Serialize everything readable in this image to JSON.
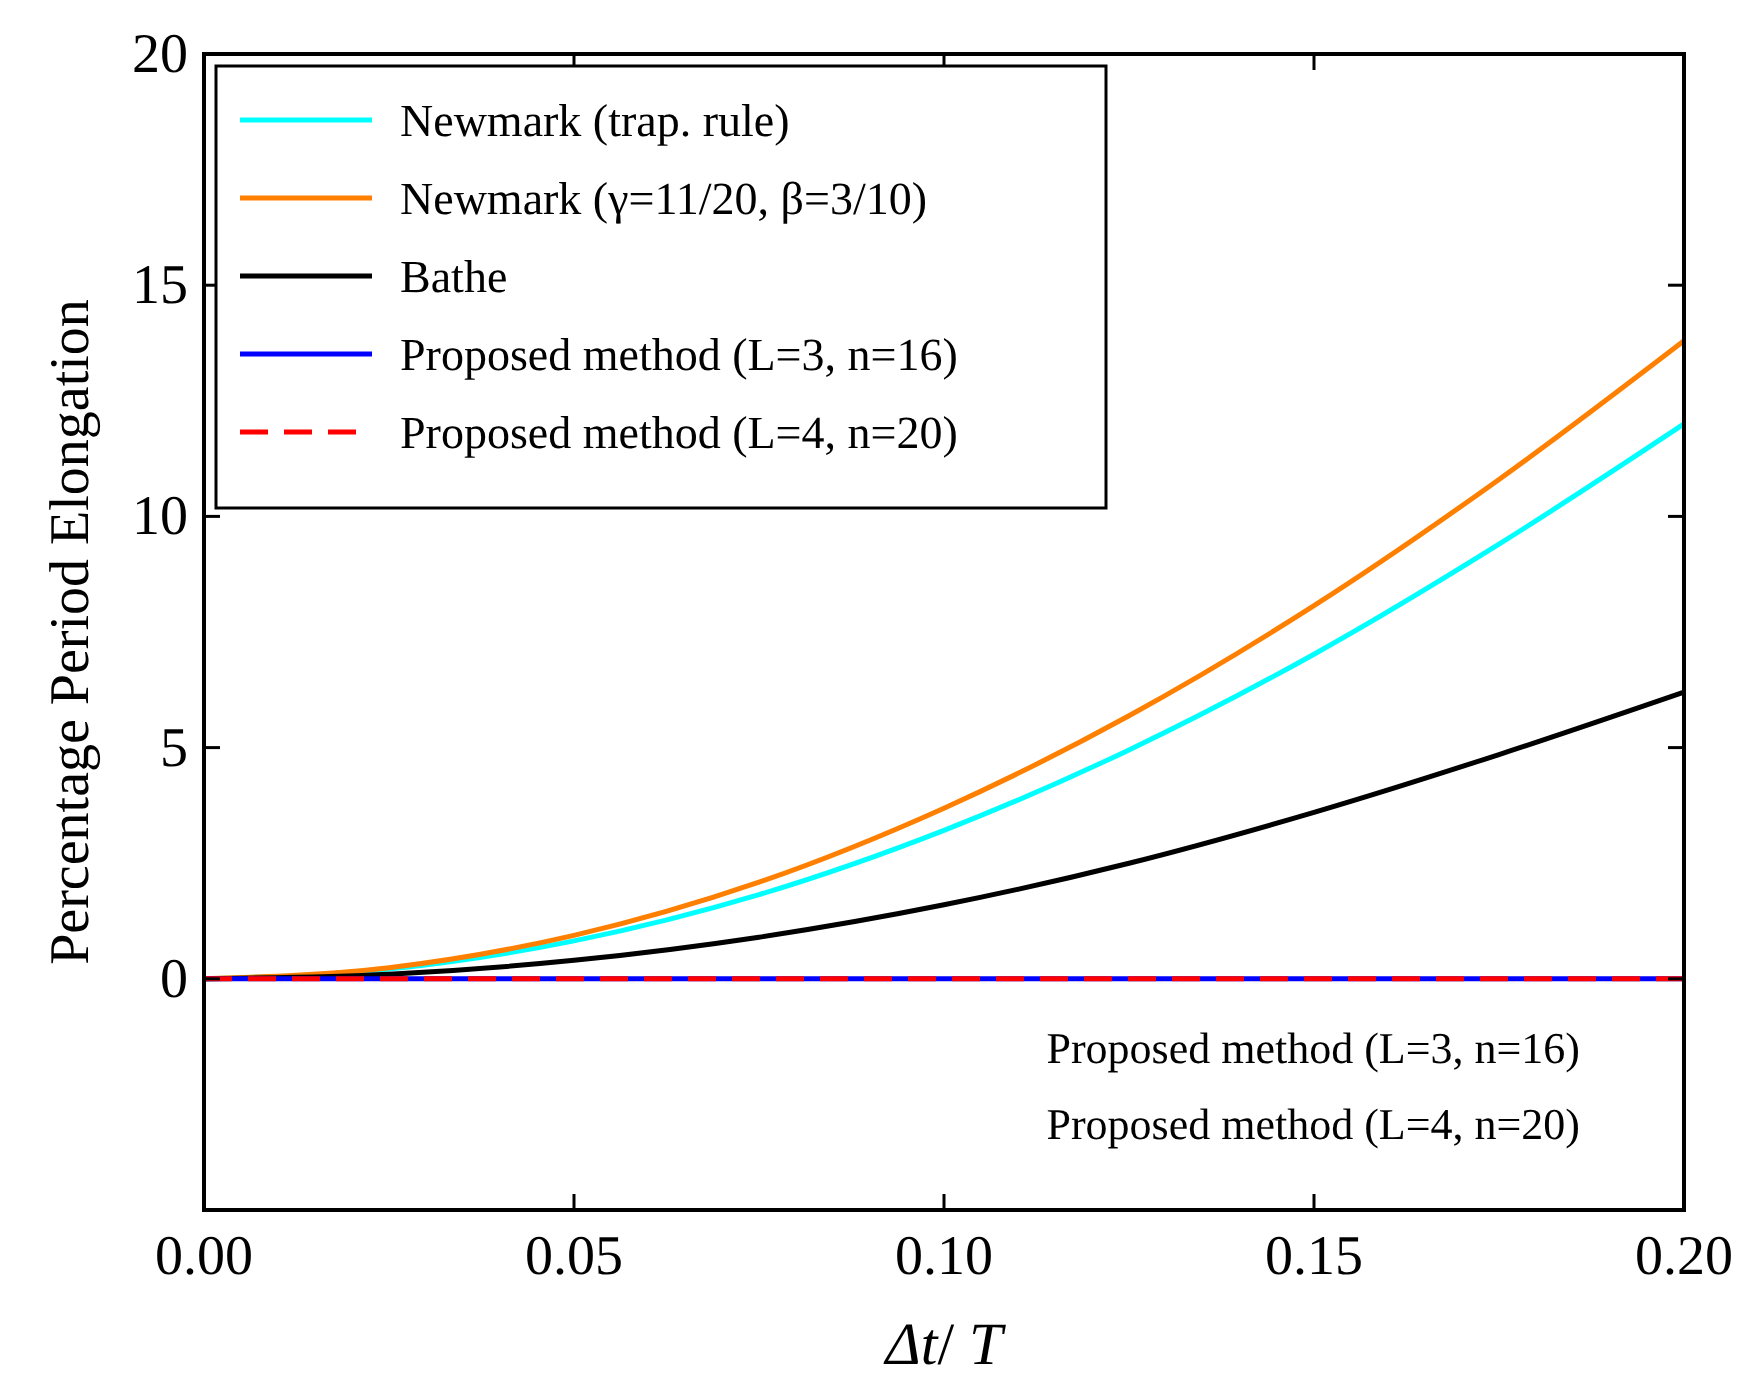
{
  "chart_data": {
    "type": "line",
    "xlabel": "Δt/ T",
    "ylabel": "Percentage Period Elongation",
    "x": [
      0,
      0.025,
      0.05,
      0.075,
      0.1,
      0.125,
      0.15,
      0.175,
      0.2
    ],
    "series": [
      {
        "name": "Newmark (trap. rule)",
        "color": "#00ffff",
        "values": [
          0,
          0.21,
          0.82,
          1.82,
          3.21,
          4.95,
          7.02,
          9.4,
          12.0
        ]
      },
      {
        "name": "Newmark (γ=11/20, β=3/10)",
        "color": "#ff8000",
        "values": [
          0,
          0.24,
          0.94,
          2.09,
          3.69,
          5.69,
          8.07,
          10.8,
          13.8
        ]
      },
      {
        "name": "Bathe",
        "color": "#000000",
        "values": [
          0,
          0.1,
          0.4,
          0.9,
          1.6,
          2.5,
          3.6,
          4.85,
          6.2
        ]
      },
      {
        "name": "Proposed method (L=3, n=16)",
        "color": "#0000ff",
        "values": [
          0,
          0,
          0,
          0,
          0,
          0,
          0,
          0,
          0
        ]
      },
      {
        "name": "Proposed method (L=4, n=20)",
        "color": "#ff0000",
        "line_style": "dashed",
        "values": [
          0,
          0,
          0,
          0,
          0,
          0,
          0,
          0,
          0
        ]
      }
    ],
    "xlim": [
      0,
      0.2
    ],
    "xticks": [
      {
        "value": 0,
        "label": "0.00"
      },
      {
        "value": 0.05,
        "label": "0.05"
      },
      {
        "value": 0.1,
        "label": "0.10"
      },
      {
        "value": 0.15,
        "label": "0.15"
      },
      {
        "value": 0.2,
        "label": "0.20"
      }
    ],
    "ylim": [
      -5,
      20
    ],
    "yticks": [
      0,
      5,
      10,
      15,
      20
    ],
    "legend": "top left",
    "grid": false,
    "marker": "none",
    "annotations": [
      "Proposed method (L=3, n=16)",
      "Proposed method (L=4, n=20)"
    ]
  }
}
